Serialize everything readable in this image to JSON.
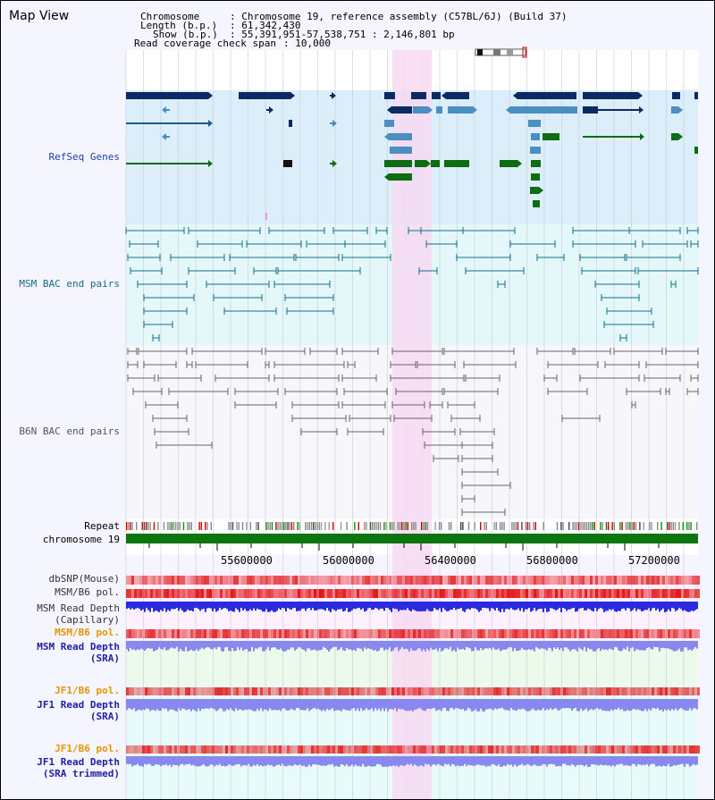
{
  "page": {
    "title": "Map View"
  },
  "header": {
    "chromosome_key": "Chromosome",
    "chromosome_value": ": Chromosome 19, reference assembly (C57BL/6J) (Build 37)",
    "length_key": "Length (b.p.)",
    "length_value": ": 61,342,430",
    "show_key": "Show (b.p.)",
    "show_value": ": 55,391,951-57,538,751 : 2,146,801 bp",
    "coverage_key": "Read coverage check span",
    "coverage_value": ": 10,000"
  },
  "tracks": {
    "refseq": "RefSeq Genes",
    "msm_bac": "MSM BAC end pairs",
    "b6n_bac": "B6N BAC end pairs",
    "repeat": "Repeat",
    "chromosome": "chromosome 19",
    "dbsnp": "dbSNP(Mouse)",
    "msm_pol": "MSM/B6 pol.",
    "msm_depth_cap_1": "MSM Read Depth",
    "msm_depth_cap_2": "(Capillary)",
    "msm_pol_2": "MSM/B6 pol.",
    "msm_depth_sra_1": "MSM Read Depth",
    "msm_depth_sra_2": "(SRA)",
    "jf1_pol": "JF1/B6 pol.",
    "jf1_depth_1": "JF1 Read Depth",
    "jf1_depth_2": "(SRA)",
    "jf1_pol_2": "JF1/B6 pol.",
    "jf1_trim_1": "JF1 Read Depth",
    "jf1_trim_2": "(SRA trimmed)"
  },
  "axis": {
    "ticks": [
      "55600000",
      "56000000",
      "56400000",
      "56800000",
      "57200000"
    ]
  },
  "colors": {
    "refseq_bg": "#dbeefa",
    "msm_bg": "#e4f8fa",
    "highlight": "#f7d9f2",
    "gene_dark": "#0b2a64",
    "gene_blue": "#4a8fc0",
    "gene_green": "#0e6d12",
    "msm_line": "#11708c",
    "b6n_line": "#666666",
    "chrom_bar": "#0d7510",
    "depth_blue": "#2a2ae0",
    "depth_light": "#8888ee",
    "label_orange": "#e59500",
    "label_blue": "#2020a8",
    "label_teal": "#1a6a86"
  }
}
